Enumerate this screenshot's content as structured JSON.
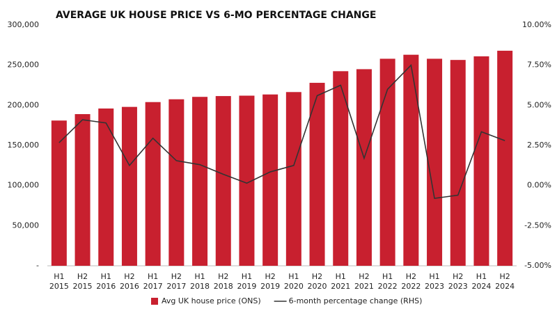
{
  "chart_data": {
    "type": "bar",
    "title": "AVERAGE UK HOUSE PRICE VS 6-MO PERCENTAGE CHANGE",
    "categories": [
      "H1 2015",
      "H2 2015",
      "H1 2016",
      "H2 2016",
      "H1 2017",
      "H2 2017",
      "H1 2018",
      "H2 2018",
      "H1 2019",
      "H2 2019",
      "H1 2020",
      "H2 2020",
      "H1 2021",
      "H2 2021",
      "H1 2022",
      "H2 2022",
      "H1 2023",
      "H2 2023",
      "H1 2024",
      "H2 2024"
    ],
    "series": [
      {
        "name": "Avg UK house price (ONS)",
        "type": "bar",
        "color": "#c8202f",
        "values": [
          181000,
          189000,
          196000,
          198000,
          204000,
          207500,
          210500,
          211500,
          212000,
          213500,
          216500,
          228000,
          242500,
          245000,
          258000,
          263000,
          258000,
          256500,
          261000,
          268000
        ]
      },
      {
        "name": "6-month percentage change (RHS)",
        "type": "line",
        "axis": "y2",
        "color": "#333333",
        "values": [
          2.67,
          4.1,
          3.9,
          1.25,
          2.95,
          1.55,
          1.3,
          0.7,
          0.15,
          0.85,
          1.25,
          5.6,
          6.25,
          1.7,
          6.0,
          7.5,
          -0.8,
          -0.6,
          3.35,
          2.8
        ]
      }
    ],
    "ylim": [
      0,
      300000
    ],
    "yticks": [
      {
        "value": 0,
        "label": "-"
      },
      {
        "value": 50000,
        "label": "50,000"
      },
      {
        "value": 100000,
        "label": "100,000"
      },
      {
        "value": 150000,
        "label": "150,000"
      },
      {
        "value": 200000,
        "label": "200,000"
      },
      {
        "value": 250000,
        "label": "250,000"
      },
      {
        "value": 300000,
        "label": "300,000"
      }
    ],
    "y2lim": [
      -5,
      10
    ],
    "y2ticks": [
      {
        "value": -5,
        "label": "-5.00%"
      },
      {
        "value": -2.5,
        "label": "-2.50%"
      },
      {
        "value": 0,
        "label": "0.00%"
      },
      {
        "value": 2.5,
        "label": "2.50%"
      },
      {
        "value": 5,
        "label": "5.00%"
      },
      {
        "value": 7.5,
        "label": "7.50%"
      },
      {
        "value": 10,
        "label": "10.00%"
      }
    ],
    "legend": "bottom"
  }
}
